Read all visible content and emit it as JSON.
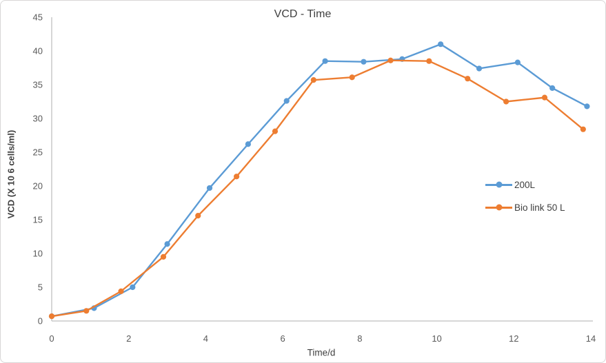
{
  "chart_data": {
    "type": "line",
    "title": "VCD - Time",
    "xlabel": "Time/d",
    "ylabel": "VCD (X 10 6 cells/ml)",
    "xlim": [
      0,
      14
    ],
    "ylim": [
      0,
      45
    ],
    "xticks": [
      0,
      2,
      4,
      6,
      8,
      10,
      12,
      14
    ],
    "yticks": [
      0,
      5,
      10,
      15,
      20,
      25,
      30,
      35,
      40,
      45
    ],
    "grid": false,
    "legend_position": "center-right",
    "series": [
      {
        "name": "200L",
        "color": "#5B9BD5",
        "marker": "circle",
        "x": [
          0,
          1.1,
          2.1,
          3.0,
          4.1,
          5.1,
          6.1,
          7.1,
          8.1,
          9.1,
          10.1,
          11.1,
          12.1,
          13.0,
          13.9
        ],
        "y": [
          0.7,
          1.9,
          5.0,
          11.4,
          19.7,
          26.2,
          32.6,
          38.5,
          38.4,
          38.8,
          41.0,
          37.4,
          38.3,
          34.5,
          31.8
        ]
      },
      {
        "name": "Bio link 50 L",
        "color": "#ED7D31",
        "marker": "circle",
        "x": [
          0,
          0.9,
          1.8,
          2.9,
          3.8,
          4.8,
          5.8,
          6.8,
          7.8,
          8.8,
          9.8,
          10.8,
          11.8,
          12.8,
          13.8
        ],
        "y": [
          0.7,
          1.5,
          4.4,
          9.5,
          15.6,
          21.4,
          28.1,
          35.7,
          36.1,
          38.6,
          38.5,
          35.9,
          32.5,
          33.1,
          28.4
        ]
      }
    ]
  },
  "colors": {
    "axis_line": "#BFBFBF",
    "tick_text": "#595959",
    "title_text": "#3F3F3F",
    "border": "#D8D6D6",
    "background": "#FFFFFF"
  }
}
